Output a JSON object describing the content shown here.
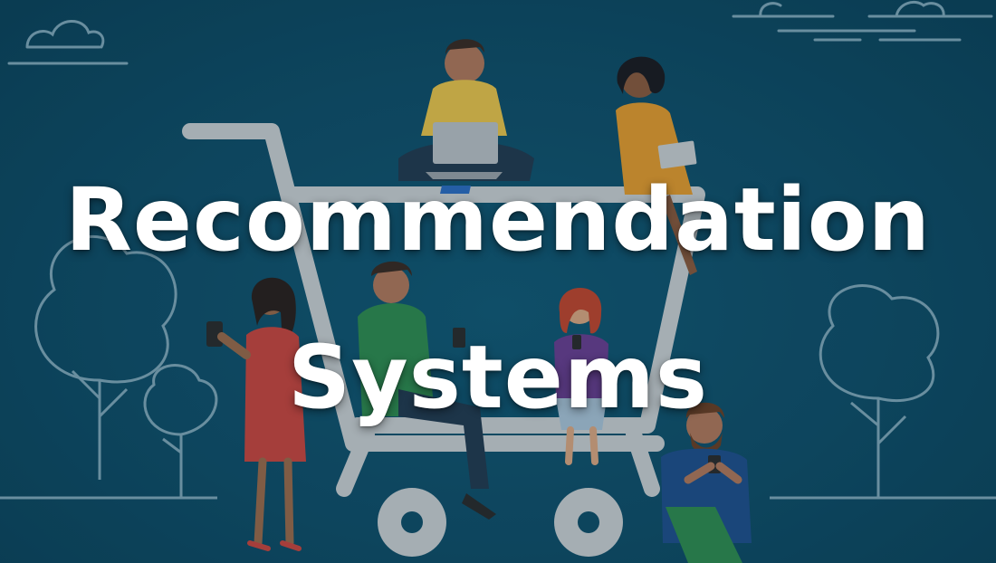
{
  "banner": {
    "title_line1": "Recommendation",
    "title_line2": "Systems"
  },
  "illustration": {
    "subject": "shopping-cart-with-people",
    "colors": {
      "background": "#0f4d67",
      "cart": "#c9cdd0",
      "outline": "#8fb2c1",
      "yellow_shirt": "#e8c24a",
      "orange_dress": "#e39a2d",
      "red_dress": "#c9453e",
      "green_hoodie": "#2f8a4f",
      "purple_top": "#6a3d8f"
    }
  }
}
